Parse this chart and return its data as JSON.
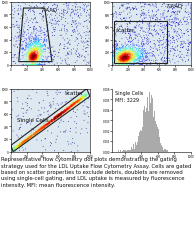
{
  "background": "#ffffff",
  "panel_bg_scatter": "#dde8f0",
  "panel_bg_hist": "#ffffff",
  "gate_color": "#222222",
  "gate_linewidth": 0.8,
  "label1": "7-AAD",
  "label2": "scatter",
  "label3": "Single Cells",
  "label4": "Single Cells\nMFI: 3229",
  "caption_fontsize": 3.8,
  "label_fontsize": 4.0,
  "hist_fill": "#aaaaaa",
  "hist_edge": "#666666",
  "caption": "Representative flow cytometry dot plots demonstrating the gating strategy used for the LDL Uptake Flow Cytometry Assay. Cells are gated based on scatter properties to exclude debris, doublets are removed using single-cell gating, and LDL uptake is measured by fluorescence intensity. MFI: mean fluorescence intensity."
}
